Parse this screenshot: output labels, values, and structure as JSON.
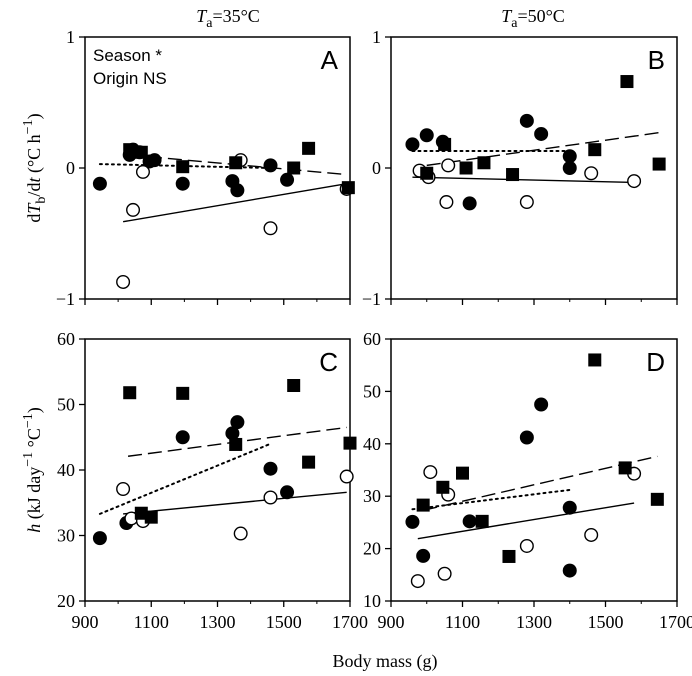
{
  "figure": {
    "top_titles": [
      {
        "prefix": "T",
        "sub": "a",
        "rest": "=35°C"
      },
      {
        "prefix": "T",
        "sub": "a",
        "rest": "=50°C"
      }
    ],
    "y_label_top": {
      "p1": "d",
      "p2": "T",
      "p3": "b",
      "p4": "/d",
      "p5": "t",
      "p6": " (°C h",
      "p7": "−1",
      "p8": ")"
    },
    "y_label_bottom": {
      "p1": "h",
      "p2": " (kJ day",
      "p3": "−1",
      "p4": " °C",
      "p5": "−1",
      "p6": ")"
    },
    "x_label": "Body mass (g)",
    "legend": {
      "line1": "Season *",
      "line2": "Origin NS"
    }
  },
  "chart_data": [
    {
      "panel": "A",
      "type": "scatter",
      "xlim": [
        900,
        1700
      ],
      "ylim": [
        -1,
        1
      ],
      "xticks": [
        "900",
        "1100",
        "1300",
        "1500",
        "1700"
      ],
      "yticks": [
        "1",
        "0",
        "−1"
      ],
      "ytick_values": [
        1,
        0,
        -1
      ],
      "series": [
        {
          "marker": "filled-circle",
          "points": [
            [
              945,
              -0.12
            ],
            [
              1035,
              0.1
            ],
            [
              1045,
              0.14
            ],
            [
              1065,
              0.12
            ],
            [
              1095,
              0.05
            ],
            [
              1110,
              0.06
            ],
            [
              1195,
              -0.12
            ],
            [
              1345,
              -0.1
            ],
            [
              1360,
              -0.17
            ],
            [
              1460,
              0.02
            ],
            [
              1510,
              -0.09
            ]
          ]
        },
        {
          "marker": "open-circle",
          "points": [
            [
              1015,
              -0.87
            ],
            [
              1045,
              -0.32
            ],
            [
              1075,
              -0.03
            ],
            [
              1370,
              0.06
            ],
            [
              1460,
              -0.46
            ],
            [
              1690,
              -0.16
            ]
          ]
        },
        {
          "marker": "filled-square",
          "points": [
            [
              1035,
              0.14
            ],
            [
              1070,
              0.12
            ],
            [
              1195,
              0.01
            ],
            [
              1355,
              0.04
            ],
            [
              1530,
              -0.0
            ],
            [
              1575,
              0.15
            ],
            [
              1695,
              -0.15
            ]
          ]
        }
      ],
      "fits": [
        {
          "style": "solid",
          "x": [
            1015,
            1690
          ],
          "y": [
            -0.41,
            -0.12
          ]
        },
        {
          "style": "dashed",
          "x": [
            1030,
            1690
          ],
          "y": [
            0.1,
            -0.05
          ]
        },
        {
          "style": "dotted",
          "x": [
            945,
            1460
          ],
          "y": [
            0.03,
            0.0
          ]
        }
      ]
    },
    {
      "panel": "B",
      "type": "scatter",
      "xlim": [
        900,
        1700
      ],
      "ylim": [
        -1,
        1
      ],
      "xticks": [
        "900",
        "1100",
        "1300",
        "1500",
        "1700"
      ],
      "yticks": [
        "1",
        "0",
        "−1"
      ],
      "ytick_values": [
        1,
        0,
        -1
      ],
      "series": [
        {
          "marker": "filled-circle",
          "points": [
            [
              960,
              0.18
            ],
            [
              1000,
              0.25
            ],
            [
              1045,
              0.2
            ],
            [
              1120,
              -0.27
            ],
            [
              1280,
              0.36
            ],
            [
              1320,
              0.26
            ],
            [
              1400,
              0.09
            ],
            [
              1400,
              0.0
            ]
          ]
        },
        {
          "marker": "open-circle",
          "points": [
            [
              980,
              -0.02
            ],
            [
              1005,
              -0.07
            ],
            [
              1055,
              -0.26
            ],
            [
              1060,
              0.02
            ],
            [
              1280,
              -0.26
            ],
            [
              1460,
              -0.04
            ],
            [
              1580,
              -0.1
            ]
          ]
        },
        {
          "marker": "filled-square",
          "points": [
            [
              1000,
              -0.04
            ],
            [
              1050,
              0.18
            ],
            [
              1110,
              0.0
            ],
            [
              1160,
              0.04
            ],
            [
              1240,
              -0.05
            ],
            [
              1470,
              0.14
            ],
            [
              1560,
              0.66
            ],
            [
              1650,
              0.03
            ]
          ]
        }
      ],
      "fits": [
        {
          "style": "solid",
          "x": [
            960,
            1580
          ],
          "y": [
            -0.07,
            -0.11
          ]
        },
        {
          "style": "dashed",
          "x": [
            1000,
            1650
          ],
          "y": [
            0.02,
            0.27
          ]
        },
        {
          "style": "dotted",
          "x": [
            960,
            1400
          ],
          "y": [
            0.13,
            0.13
          ]
        }
      ]
    },
    {
      "panel": "C",
      "type": "scatter",
      "xlim": [
        900,
        1700
      ],
      "ylim": [
        20,
        60
      ],
      "xticks": [
        "900",
        "1100",
        "1300",
        "1500",
        "1700"
      ],
      "yticks": [
        "60",
        "50",
        "40",
        "30",
        "20"
      ],
      "ytick_values": [
        60,
        50,
        40,
        30,
        20
      ],
      "series": [
        {
          "marker": "filled-circle",
          "points": [
            [
              945,
              29.6
            ],
            [
              1025,
              31.9
            ],
            [
              1195,
              45.0
            ],
            [
              1345,
              45.6
            ],
            [
              1360,
              47.3
            ],
            [
              1460,
              40.2
            ],
            [
              1510,
              36.6
            ]
          ]
        },
        {
          "marker": "open-circle",
          "points": [
            [
              1015,
              37.1
            ],
            [
              1040,
              32.6
            ],
            [
              1075,
              32.2
            ],
            [
              1370,
              30.3
            ],
            [
              1460,
              35.8
            ],
            [
              1690,
              39.0
            ]
          ]
        },
        {
          "marker": "filled-square",
          "points": [
            [
              1035,
              51.8
            ],
            [
              1070,
              33.4
            ],
            [
              1100,
              32.8
            ],
            [
              1195,
              51.7
            ],
            [
              1355,
              43.9
            ],
            [
              1530,
              52.9
            ],
            [
              1575,
              41.2
            ],
            [
              1700,
              44.1
            ]
          ]
        }
      ],
      "fits": [
        {
          "style": "solid",
          "x": [
            1015,
            1690
          ],
          "y": [
            33.3,
            36.6
          ]
        },
        {
          "style": "dashed",
          "x": [
            1030,
            1690
          ],
          "y": [
            42.1,
            46.5
          ]
        },
        {
          "style": "dotted",
          "x": [
            945,
            1460
          ],
          "y": [
            33.3,
            44.0
          ]
        }
      ]
    },
    {
      "panel": "D",
      "type": "scatter",
      "xlim": [
        900,
        1700
      ],
      "ylim": [
        10,
        60
      ],
      "xticks": [
        "900",
        "1100",
        "1300",
        "1500",
        "1700"
      ],
      "yticks": [
        "60",
        "50",
        "40",
        "30",
        "20",
        "10"
      ],
      "ytick_values": [
        60,
        50,
        40,
        30,
        20,
        10
      ],
      "series": [
        {
          "marker": "filled-circle",
          "points": [
            [
              960,
              25.1
            ],
            [
              990,
              18.6
            ],
            [
              1120,
              25.2
            ],
            [
              1280,
              41.2
            ],
            [
              1320,
              47.5
            ],
            [
              1400,
              27.8
            ],
            [
              1400,
              15.8
            ]
          ]
        },
        {
          "marker": "open-circle",
          "points": [
            [
              975,
              13.8
            ],
            [
              1010,
              34.6
            ],
            [
              1050,
              15.2
            ],
            [
              1060,
              30.3
            ],
            [
              1280,
              20.5
            ],
            [
              1460,
              22.6
            ],
            [
              1580,
              34.3
            ]
          ]
        },
        {
          "marker": "filled-square",
          "points": [
            [
              990,
              28.3
            ],
            [
              1045,
              31.7
            ],
            [
              1100,
              34.4
            ],
            [
              1155,
              25.2
            ],
            [
              1230,
              18.5
            ],
            [
              1470,
              56.0
            ],
            [
              1555,
              35.4
            ],
            [
              1645,
              29.4
            ]
          ]
        }
      ],
      "fits": [
        {
          "style": "solid",
          "x": [
            975,
            1580
          ],
          "y": [
            21.9,
            28.7
          ]
        },
        {
          "style": "dashed",
          "x": [
            990,
            1645
          ],
          "y": [
            27.3,
            37.6
          ]
        },
        {
          "style": "dotted",
          "x": [
            960,
            1400
          ],
          "y": [
            27.5,
            31.2
          ]
        }
      ]
    }
  ]
}
